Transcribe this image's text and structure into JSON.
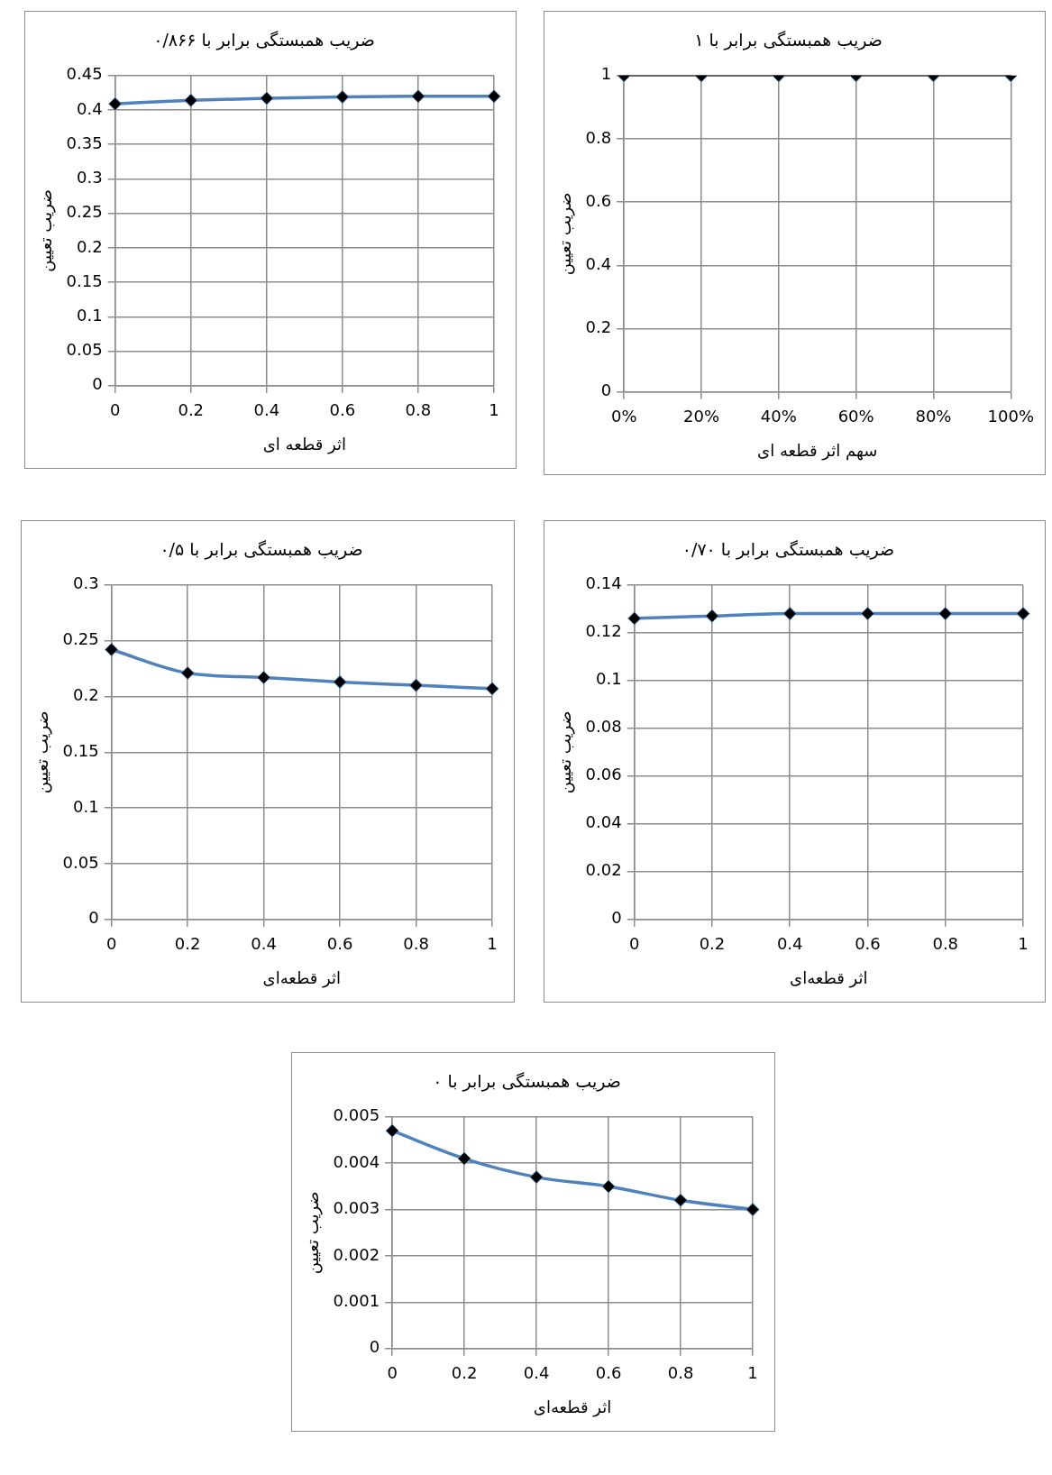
{
  "chart_data": [
    {
      "type": "line",
      "title": "ضریب همبستگی برابر با ۱",
      "xlabel": "سهم اثر قطعه ای",
      "ylabel": "ضریب تعیین",
      "categories": [
        "0%",
        "20%",
        "40%",
        "60%",
        "80%",
        "100%"
      ],
      "series": [
        {
          "color": "#000000",
          "values": [
            1,
            1,
            1,
            1,
            1,
            1
          ]
        }
      ],
      "ylim": [
        0,
        1
      ],
      "yticks": [
        0,
        0.2,
        0.4,
        0.6,
        0.8,
        1
      ],
      "grid": true,
      "legend": false,
      "marker": "diamond",
      "line_style": "solid"
    },
    {
      "type": "line",
      "title": "ضریب همبستگی برابر با ۰/۸۶۶",
      "xlabel": "اثر قطعه ای",
      "ylabel": "ضریب تعیین",
      "categories": [
        "0",
        "0.2",
        "0.4",
        "0.6",
        "0.8",
        "1"
      ],
      "series": [
        {
          "color": "#4f81bd",
          "values": [
            0.409,
            0.414,
            0.417,
            0.419,
            0.42,
            0.42
          ]
        }
      ],
      "ylim": [
        0,
        0.45
      ],
      "yticks": [
        0,
        0.05,
        0.1,
        0.15,
        0.2,
        0.25,
        0.3,
        0.35,
        0.4,
        0.45
      ],
      "grid": true,
      "legend": false,
      "marker": "diamond",
      "line_style": "solid"
    },
    {
      "type": "line",
      "title": "ضریب همبستگی برابر با ۰/۷۰",
      "xlabel": "اثر قطعه‌ای",
      "ylabel": "ضریب تعیین",
      "categories": [
        "0",
        "0.2",
        "0.4",
        "0.6",
        "0.8",
        "1"
      ],
      "series": [
        {
          "color": "#4f81bd",
          "values": [
            0.126,
            0.127,
            0.128,
            0.128,
            0.128,
            0.128
          ]
        }
      ],
      "ylim": [
        0,
        0.14
      ],
      "yticks": [
        0,
        0.02,
        0.04,
        0.06,
        0.08,
        0.1,
        0.12,
        0.14
      ],
      "grid": true,
      "legend": false,
      "marker": "diamond",
      "line_style": "solid"
    },
    {
      "type": "line",
      "title": "ضریب همبستگی برابر با ۰/۵",
      "xlabel": "اثر قطعه‌ای",
      "ylabel": "ضریب تعیین",
      "categories": [
        "0",
        "0.2",
        "0.4",
        "0.6",
        "0.8",
        "1"
      ],
      "series": [
        {
          "color": "#4f81bd",
          "values": [
            0.242,
            0.221,
            0.217,
            0.213,
            0.21,
            0.207
          ]
        }
      ],
      "ylim": [
        0,
        0.3
      ],
      "yticks": [
        0,
        0.05,
        0.1,
        0.15,
        0.2,
        0.25,
        0.3
      ],
      "grid": true,
      "legend": false,
      "marker": "diamond",
      "line_style": "solid"
    },
    {
      "type": "line",
      "title": "ضریب همبستگی برابر با ۰",
      "xlabel": "اثر قطعه‌ای",
      "ylabel": "ضریب تعیین",
      "categories": [
        "0",
        "0.2",
        "0.4",
        "0.6",
        "0.8",
        "1"
      ],
      "series": [
        {
          "color": "#4f81bd",
          "values": [
            0.0047,
            0.0041,
            0.0037,
            0.0035,
            0.0032,
            0.003
          ]
        }
      ],
      "ylim": [
        0,
        0.005
      ],
      "yticks": [
        0,
        0.001,
        0.002,
        0.003,
        0.004,
        0.005
      ],
      "grid": true,
      "legend": false,
      "marker": "diamond",
      "line_style": "solid"
    }
  ]
}
